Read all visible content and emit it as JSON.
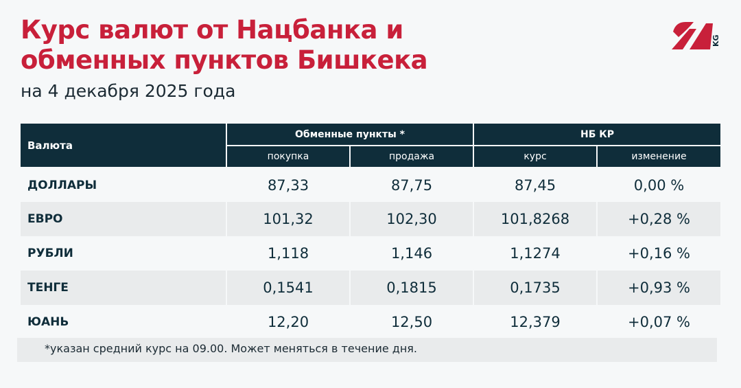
{
  "title_line1": "Курс валют от Нацбанка и",
  "title_line2": "обменных пунктов Бишкека",
  "subtitle": "на 4 декабря 2025 года",
  "logo_text": "24 KG",
  "colors": {
    "accent": "#c8203a",
    "header": "#0f2d3a"
  },
  "table": {
    "col_currency": "Валюта",
    "group_exchange": "Обменные пункты *",
    "group_nb": "НБ КР",
    "buy": "покупка",
    "sell": "продажа",
    "rate": "курс",
    "change": "изменение",
    "rows": [
      {
        "name": "ДОЛЛАРЫ",
        "buy": "87,33",
        "sell": "87,75",
        "rate": "87,45",
        "change": "0,00 %"
      },
      {
        "name": "ЕВРО",
        "buy": "101,32",
        "sell": "102,30",
        "rate": "101,8268",
        "change": "+0,28 %"
      },
      {
        "name": "РУБЛИ",
        "buy": "1,118",
        "sell": "1,146",
        "rate": "1,1274",
        "change": "+0,16 %"
      },
      {
        "name": "ТЕНГЕ",
        "buy": "0,1541",
        "sell": "0,1815",
        "rate": "0,1735",
        "change": "+0,93 %"
      },
      {
        "name": "ЮАНЬ",
        "buy": "12,20",
        "sell": "12,50",
        "rate": "12,379",
        "change": "+0,07 %"
      }
    ]
  },
  "footnote": "*указан средний курс на 09.00. Может меняться в течение дня."
}
